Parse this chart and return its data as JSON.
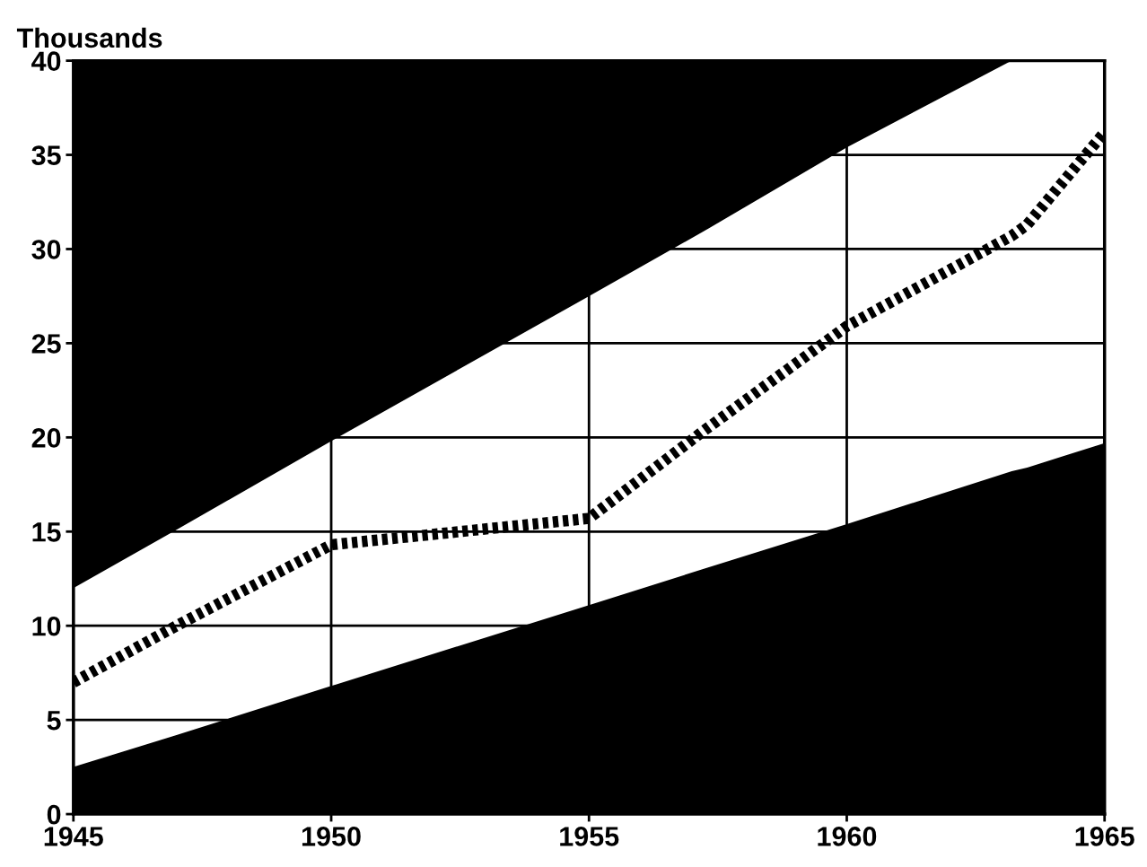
{
  "chart_data": {
    "type": "line",
    "ylabel": "Thousands",
    "series": [
      {
        "color": "#000000",
        "line_style": "dotted",
        "x": [
          1945,
          1947,
          1950,
          1955,
          1957.2,
          1960,
          1963.2,
          1963.5,
          1965
        ],
        "values": [
          7,
          10,
          14.3,
          15.7,
          20.3,
          25.9,
          30.7,
          31.3,
          36.2
        ],
        "lower": [
          2.5,
          4.2,
          6.8,
          11.1,
          13.0,
          15.4,
          18.2,
          18.4,
          19.7
        ],
        "upper": [
          12,
          15.1,
          19.8,
          27.5,
          30.9,
          35.4,
          40,
          40,
          40
        ]
      }
    ],
    "xlim": [
      1945,
      1965
    ],
    "xticks": [
      1945,
      1950,
      1955,
      1960,
      1965
    ],
    "ylim": [
      0,
      40
    ],
    "yticks": [
      0,
      5,
      10,
      15,
      20,
      25,
      30,
      35,
      40
    ],
    "grid": true
  }
}
